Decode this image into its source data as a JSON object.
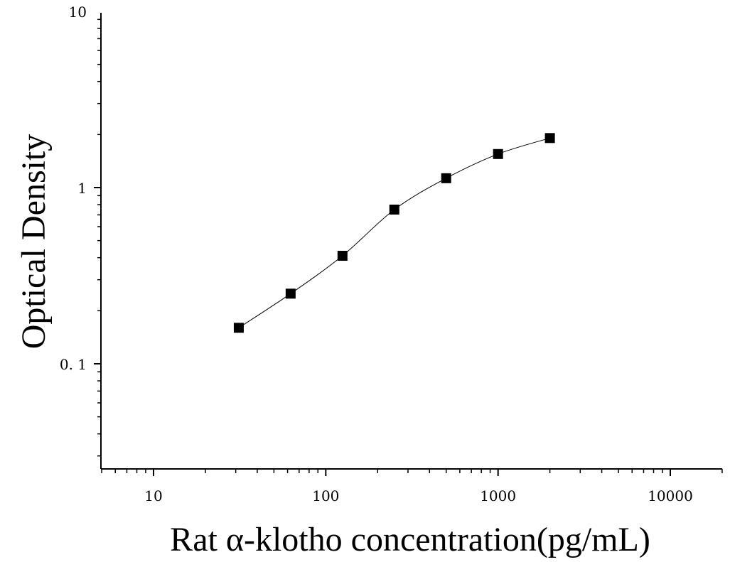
{
  "chart_data": {
    "type": "scatter",
    "title": "",
    "xlabel": "Rat α-klotho concentration(pg/mL)",
    "ylabel": "Optical Density",
    "x_scale": "log",
    "y_scale": "log",
    "xlim": [
      5,
      20000
    ],
    "ylim": [
      0.025,
      10
    ],
    "x_tick_labels": [
      "10",
      "100",
      "1000",
      "10000"
    ],
    "x_ticks": [
      10,
      100,
      1000,
      10000
    ],
    "y_tick_labels": [
      "0. 1",
      "1",
      "10"
    ],
    "y_ticks": [
      0.1,
      1,
      10
    ],
    "grid": false,
    "legend": "none",
    "marker": "square",
    "series": [
      {
        "x": [
          31.25,
          62.5,
          125,
          250,
          500,
          1000,
          2000
        ],
        "y": [
          0.16,
          0.25,
          0.41,
          0.75,
          1.13,
          1.55,
          1.91
        ],
        "fit": "4PL curve"
      }
    ],
    "colors": {
      "marker": "#000000",
      "line": "#000000"
    }
  }
}
